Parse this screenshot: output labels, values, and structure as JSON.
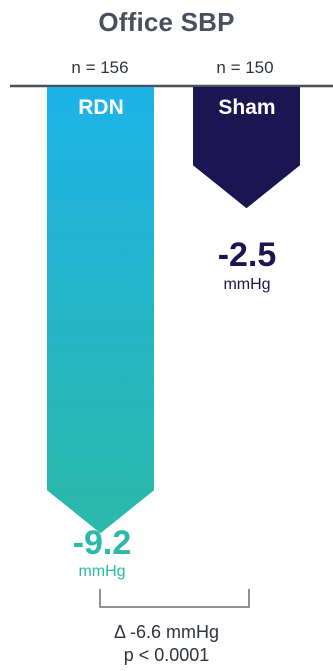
{
  "chart_data": {
    "type": "bar",
    "title": "Office SBP",
    "categories": [
      "RDN",
      "Sham"
    ],
    "n_labels": [
      "n = 156",
      "n = 150"
    ],
    "values": [
      -9.2,
      -2.5
    ],
    "value_labels": [
      "-9.2",
      "-2.5"
    ],
    "unit": "mmHg",
    "difference": "Δ -6.6 mmHg",
    "p_value": "p < 0.0001",
    "colors": {
      "rdn_top": "#1eb3e8",
      "rdn_bottom": "#2bb9a8",
      "sham": "#1b1551",
      "rdn_text": "#2bb9a8",
      "sham_text": "#1b1551"
    }
  }
}
